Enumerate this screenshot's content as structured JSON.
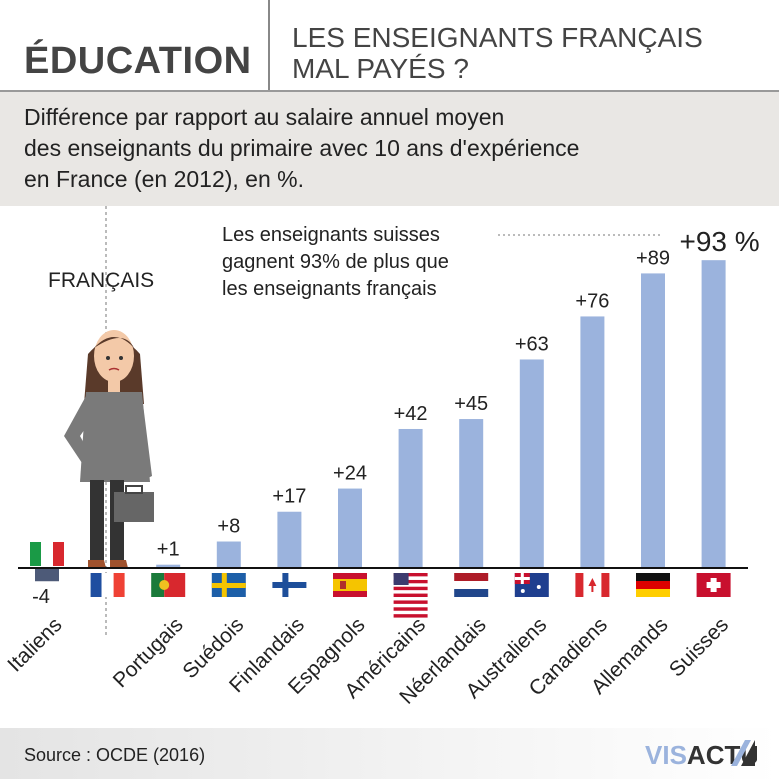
{
  "header": {
    "section": "ÉDUCATION",
    "title_line1": "LES ENSEIGNANTS FRANÇAIS",
    "title_line2": "MAL PAYÉS ?"
  },
  "subtitle": {
    "line1": "Différence par rapport au salaire annuel moyen",
    "line2": "des enseignants du primaire avec 10 ans d'expérience",
    "line3": "en France (en 2012), en %."
  },
  "chart_data": {
    "type": "bar",
    "categories": [
      "Italiens",
      "Français",
      "Portugais",
      "Suédois",
      "Finlandais",
      "Espagnols",
      "Américains",
      "Néerlandais",
      "Australiens",
      "Canadiens",
      "Allemands",
      "Suisses"
    ],
    "values": [
      -4,
      0,
      1,
      8,
      17,
      24,
      42,
      45,
      63,
      76,
      89,
      93
    ],
    "value_labels": [
      "-4",
      "",
      "+1",
      "+8",
      "+17",
      "+24",
      "+42",
      "+45",
      "+63",
      "+76",
      "+89",
      "+93 %"
    ],
    "flags": [
      "flag-it",
      "flag-fr",
      "flag-pt",
      "flag-se",
      "flag-fi",
      "flag-es",
      "flag-us",
      "flag-nl",
      "flag-au",
      "flag-ca",
      "flag-de",
      "flag-ch"
    ],
    "reference_label": "FRANÇAIS",
    "annotation": {
      "line1": "Les enseignants suisses",
      "line2": "gagnent 93% de plus que",
      "line3": "les enseignants français"
    },
    "colors": {
      "positive": "#9bb3dd",
      "negative": "#4d5a78"
    }
  },
  "footer": {
    "source": "Source : OCDE (2016)",
    "logo": "VISACTU"
  }
}
